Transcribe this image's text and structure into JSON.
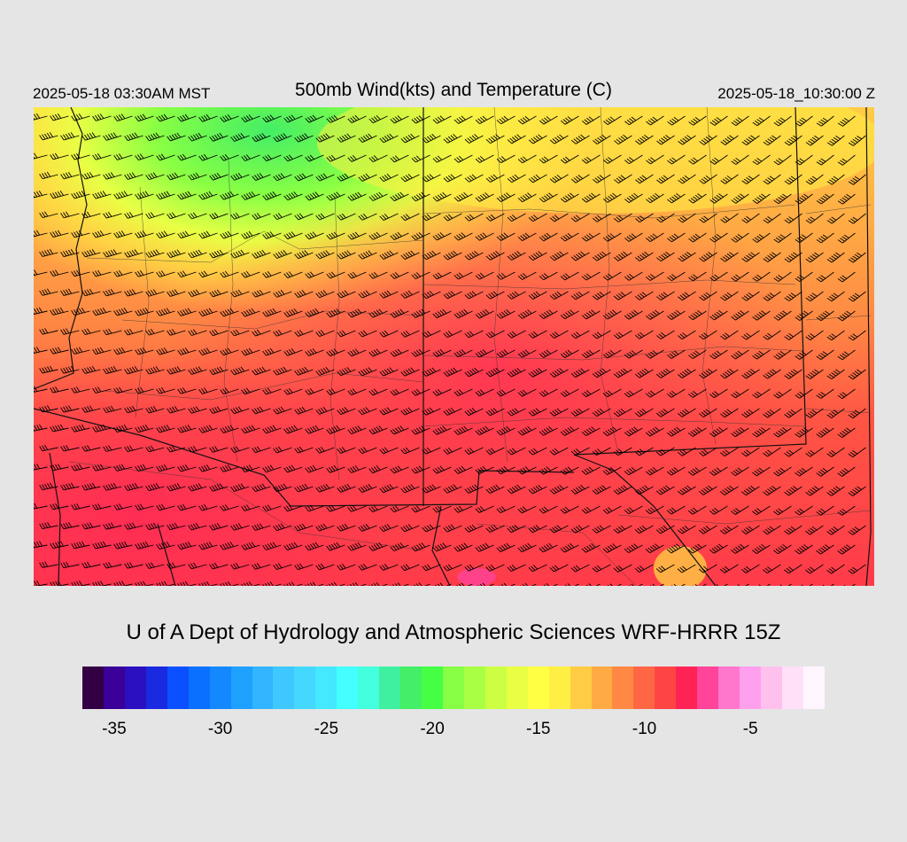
{
  "header": {
    "local_time": "2025-05-18 03:30AM MST",
    "title": "500mb Wind(kts) and Temperature (C)",
    "utc_time": "2025-05-18_10:30:00 Z"
  },
  "credit": "U of A Dept of Hydrology and Atmospheric Sciences WRF-HRRR 15Z",
  "colorbar": {
    "colors": [
      "#330044",
      "#3a0099",
      "#2a10c0",
      "#1a2ae0",
      "#0a50ff",
      "#0a70ff",
      "#1488ff",
      "#1ea0ff",
      "#32b4ff",
      "#3ec8ff",
      "#44d8ff",
      "#44e8ff",
      "#44ffff",
      "#44ffdd",
      "#3ef0a0",
      "#44ee66",
      "#44ff44",
      "#88ff44",
      "#a8ff44",
      "#ccff44",
      "#e8ff44",
      "#ffff44",
      "#ffee44",
      "#ffcc44",
      "#ffaa44",
      "#ff8844",
      "#ff6644",
      "#ff4444",
      "#ff2255",
      "#ff4499",
      "#ff77cc",
      "#ffa0ee",
      "#ffc0ee",
      "#ffe0f8",
      "#fff5ff"
    ],
    "tick_labels": [
      "-35",
      "-30",
      "-25",
      "-20",
      "-15",
      "-10",
      "-5"
    ],
    "tick_values": [
      -35,
      -30,
      -25,
      -20,
      -15,
      -10,
      -5
    ],
    "min": -36,
    "max": -1
  }
}
